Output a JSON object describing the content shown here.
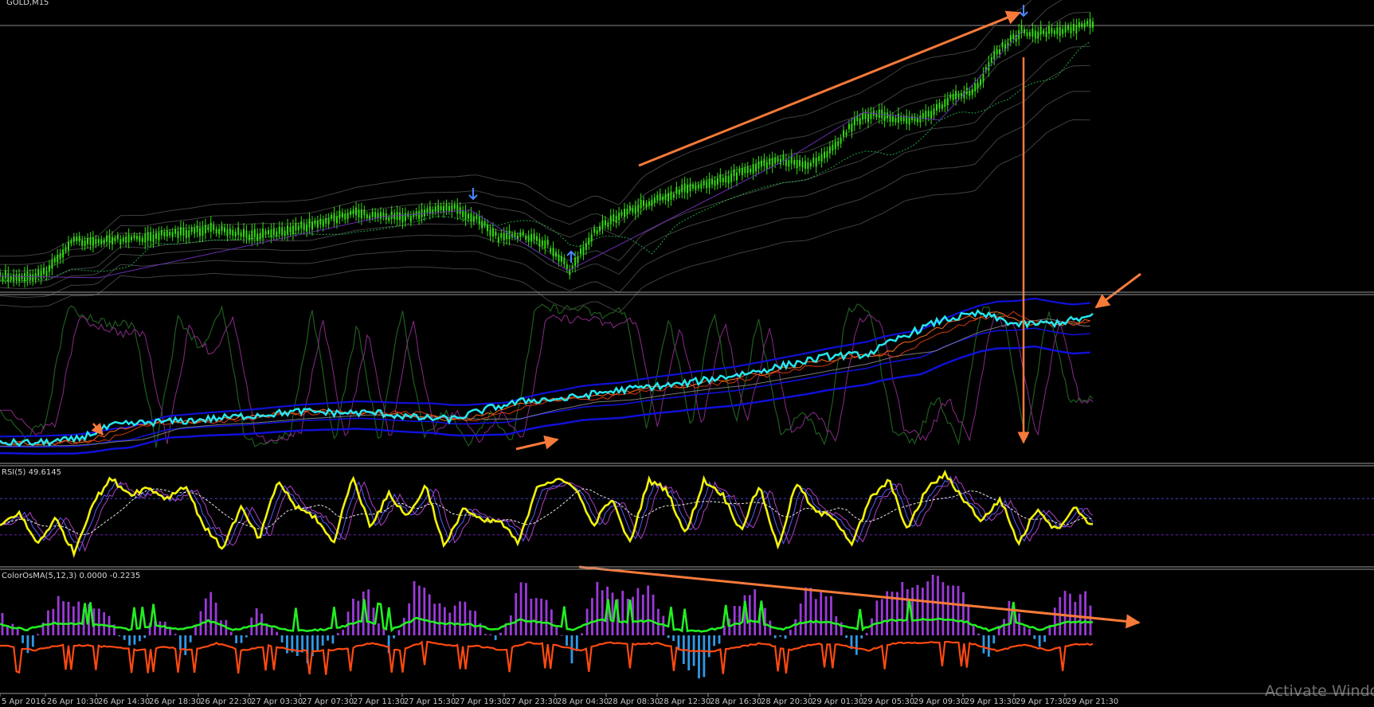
{
  "chart_data": [
    {
      "type": "line",
      "pane": "price",
      "title": "GOLD,M15",
      "colors": {
        "candles": "#33dd11",
        "bands": "#555555",
        "ma": "#22aa44",
        "zigzag": "#6a2fb0",
        "arrows": "#4a88ff"
      },
      "series": [
        {
          "values": [
            0.14,
            0.12,
            0.18,
            0.55,
            0.52,
            0.56,
            0.58,
            0.62,
            0.65,
            0.68,
            0.63,
            0.6,
            0.65,
            0.72,
            0.8,
            0.86,
            0.82,
            0.8,
            0.9,
            0.93,
            0.82,
            0.58,
            0.62,
            0.52,
            0.2,
            0.64,
            0.82,
            0.96,
            1.06,
            1.14,
            1.2,
            1.31,
            1.42,
            1.48,
            1.4,
            1.58,
            1.92,
            2.02,
            1.93,
            1.96,
            2.18,
            2.26,
            2.72,
            2.95,
            2.93,
            2.98,
            3.04
          ]
        }
      ]
    },
    {
      "type": "line",
      "pane": "stochastic",
      "series": [
        {
          "values": [
            0.1,
            0.1,
            0.12,
            0.21,
            0.23,
            0.24,
            0.26,
            0.28,
            0.3,
            0.29,
            0.29,
            0.26,
            0.25,
            0.32,
            0.37,
            0.38,
            0.42,
            0.45,
            0.47,
            0.51,
            0.55,
            0.6,
            0.65,
            0.66,
            0.78,
            0.88,
            0.92,
            0.85,
            0.86,
            0.9
          ]
        }
      ]
    },
    {
      "type": "line",
      "pane": "rsi",
      "title": "RSI(5) 49.6145",
      "series": [
        {
          "values": [
            40,
            55,
            20,
            48,
            10,
            65,
            92,
            75,
            82,
            70,
            85,
            40,
            15,
            60,
            25,
            90,
            60,
            50,
            20,
            94,
            40,
            75,
            50,
            85,
            15,
            60,
            45,
            45,
            20,
            85,
            90,
            85,
            40,
            70,
            20,
            90,
            80,
            30,
            90,
            75,
            35,
            85,
            15,
            88,
            55,
            50,
            20,
            70,
            90,
            35,
            80,
            97,
            70,
            45,
            70,
            20,
            60,
            35,
            60,
            40
          ]
        }
      ]
    },
    {
      "type": "bar",
      "pane": "osma",
      "title": "ColorOsMA(5,12,3) 0.0000 -0.2235",
      "series": [
        {
          "values": [
            0.4,
            -0.25,
            0.55,
            0.5,
            0.3,
            -0.2,
            0.35,
            -0.3,
            0.75,
            -0.2,
            0.45,
            -0.25,
            -0.45,
            0.1,
            0.85,
            -0.3,
            0.95,
            0.5,
            0.45,
            -0.2,
            0.85,
            0.55,
            -0.4,
            0.9,
            0.65,
            0.75,
            -0.3,
            -0.7,
            0.3,
            0.8,
            -0.15,
            0.7,
            0.6,
            -0.35,
            0.75,
            0.85,
            0.9,
            0.75,
            -0.35,
            0.6,
            -0.25,
            0.7,
            0.6
          ]
        }
      ],
      "x_ticks": [
        "5 Apr 2016",
        "26 Apr 10:30",
        "26 Apr 14:30",
        "26 Apr 18:30",
        "26 Apr 22:30",
        "27 Apr 03:30",
        "27 Apr 07:30",
        "27 Apr 11:30",
        "27 Apr 15:30",
        "27 Apr 19:30",
        "27 Apr 23:30",
        "28 Apr 04:30",
        "28 Apr 08:30",
        "28 Apr 12:30",
        "28 Apr 16:30",
        "28 Apr 20:30",
        "29 Apr 01:30",
        "29 Apr 05:30",
        "29 Apr 09:30",
        "29 Apr 13:30",
        "29 Apr 17:30",
        "29 Apr 21:30"
      ]
    }
  ],
  "watermark": "Activate Windows"
}
